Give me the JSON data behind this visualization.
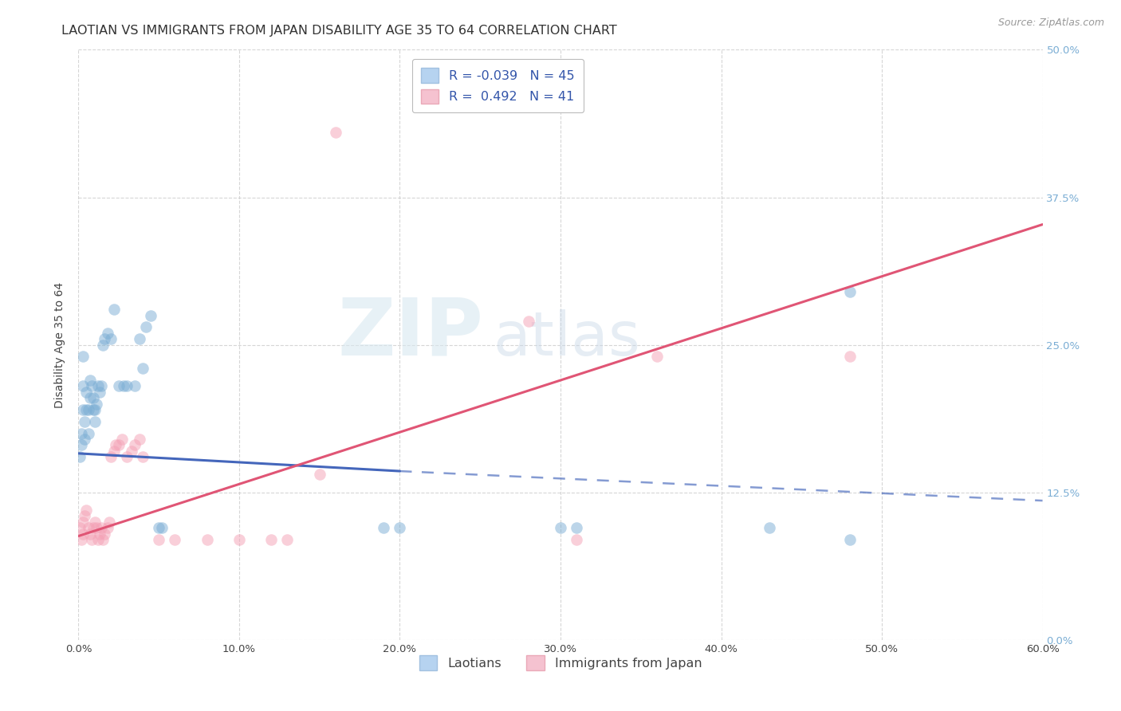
{
  "title": "LAOTIAN VS IMMIGRANTS FROM JAPAN DISABILITY AGE 35 TO 64 CORRELATION CHART",
  "source": "Source: ZipAtlas.com",
  "ylabel": "Disability Age 35 to 64",
  "xlim": [
    0.0,
    0.6
  ],
  "ylim": [
    0.0,
    0.5
  ],
  "legend_blue_r": "-0.039",
  "legend_blue_n": "45",
  "legend_pink_r": "0.492",
  "legend_pink_n": "41",
  "blue_scatter": [
    [
      0.001,
      0.155
    ],
    [
      0.002,
      0.165
    ],
    [
      0.002,
      0.175
    ],
    [
      0.003,
      0.195
    ],
    [
      0.003,
      0.215
    ],
    [
      0.003,
      0.24
    ],
    [
      0.004,
      0.17
    ],
    [
      0.004,
      0.185
    ],
    [
      0.005,
      0.195
    ],
    [
      0.005,
      0.21
    ],
    [
      0.006,
      0.175
    ],
    [
      0.006,
      0.195
    ],
    [
      0.007,
      0.205
    ],
    [
      0.007,
      0.22
    ],
    [
      0.008,
      0.215
    ],
    [
      0.009,
      0.195
    ],
    [
      0.009,
      0.205
    ],
    [
      0.01,
      0.185
    ],
    [
      0.01,
      0.195
    ],
    [
      0.011,
      0.2
    ],
    [
      0.012,
      0.215
    ],
    [
      0.013,
      0.21
    ],
    [
      0.014,
      0.215
    ],
    [
      0.015,
      0.25
    ],
    [
      0.016,
      0.255
    ],
    [
      0.018,
      0.26
    ],
    [
      0.02,
      0.255
    ],
    [
      0.022,
      0.28
    ],
    [
      0.025,
      0.215
    ],
    [
      0.028,
      0.215
    ],
    [
      0.03,
      0.215
    ],
    [
      0.035,
      0.215
    ],
    [
      0.038,
      0.255
    ],
    [
      0.04,
      0.23
    ],
    [
      0.042,
      0.265
    ],
    [
      0.045,
      0.275
    ],
    [
      0.05,
      0.095
    ],
    [
      0.052,
      0.095
    ],
    [
      0.19,
      0.095
    ],
    [
      0.2,
      0.095
    ],
    [
      0.3,
      0.095
    ],
    [
      0.31,
      0.095
    ],
    [
      0.43,
      0.095
    ],
    [
      0.48,
      0.085
    ],
    [
      0.48,
      0.295
    ]
  ],
  "pink_scatter": [
    [
      0.001,
      0.095
    ],
    [
      0.002,
      0.085
    ],
    [
      0.003,
      0.09
    ],
    [
      0.003,
      0.1
    ],
    [
      0.004,
      0.105
    ],
    [
      0.005,
      0.11
    ],
    [
      0.006,
      0.095
    ],
    [
      0.007,
      0.09
    ],
    [
      0.008,
      0.085
    ],
    [
      0.009,
      0.095
    ],
    [
      0.01,
      0.1
    ],
    [
      0.011,
      0.095
    ],
    [
      0.012,
      0.085
    ],
    [
      0.013,
      0.09
    ],
    [
      0.014,
      0.095
    ],
    [
      0.015,
      0.085
    ],
    [
      0.016,
      0.09
    ],
    [
      0.018,
      0.095
    ],
    [
      0.019,
      0.1
    ],
    [
      0.02,
      0.155
    ],
    [
      0.022,
      0.16
    ],
    [
      0.023,
      0.165
    ],
    [
      0.025,
      0.165
    ],
    [
      0.027,
      0.17
    ],
    [
      0.03,
      0.155
    ],
    [
      0.033,
      0.16
    ],
    [
      0.035,
      0.165
    ],
    [
      0.038,
      0.17
    ],
    [
      0.04,
      0.155
    ],
    [
      0.05,
      0.085
    ],
    [
      0.06,
      0.085
    ],
    [
      0.08,
      0.085
    ],
    [
      0.1,
      0.085
    ],
    [
      0.12,
      0.085
    ],
    [
      0.13,
      0.085
    ],
    [
      0.15,
      0.14
    ],
    [
      0.16,
      0.43
    ],
    [
      0.28,
      0.27
    ],
    [
      0.31,
      0.085
    ],
    [
      0.36,
      0.24
    ],
    [
      0.48,
      0.24
    ]
  ],
  "blue_line_solid": [
    [
      0.0,
      0.158
    ],
    [
      0.2,
      0.143
    ]
  ],
  "blue_line_dashed": [
    [
      0.2,
      0.143
    ],
    [
      0.6,
      0.118
    ]
  ],
  "pink_line": [
    [
      0.0,
      0.088
    ],
    [
      0.6,
      0.352
    ]
  ],
  "watermark_zip": "ZIP",
  "watermark_atlas": "atlas",
  "bg_color": "#ffffff",
  "blue_color": "#7aadd4",
  "pink_color": "#f4a0b5",
  "blue_line_color": "#4466bb",
  "pink_line_color": "#e05575",
  "grid_color": "#cccccc",
  "right_tick_color": "#7aadd4",
  "title_fontsize": 11.5,
  "axis_fontsize": 10,
  "tick_fontsize": 9.5,
  "source_fontsize": 9
}
